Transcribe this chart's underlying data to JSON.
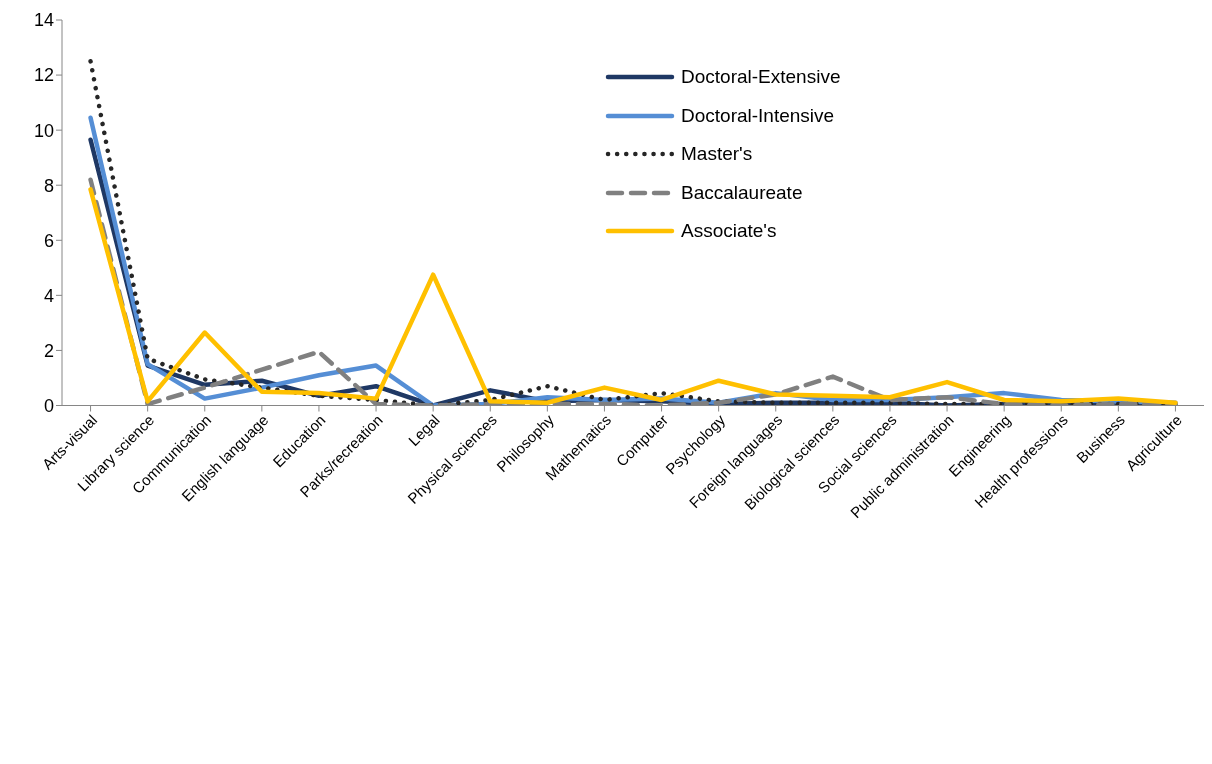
{
  "chart_data": {
    "type": "line",
    "categories": [
      "Arts-visual",
      "Library science",
      "Communication",
      "English language",
      "Education",
      "Parks/recreation",
      "Legal",
      "Physical sciences",
      "Philosophy",
      "Mathematics",
      "Computer",
      "Psychology",
      "Foreign languages",
      "Biological sciences",
      "Social sciences",
      "Public administration",
      "Engineering",
      "Health professions",
      "Business",
      "Agriculture"
    ],
    "ylim": [
      0,
      14
    ],
    "yticks": [
      0,
      2,
      4,
      6,
      8,
      10,
      12,
      14
    ],
    "grid": false,
    "legend": "top right",
    "series": [
      {
        "name": "Doctoral-Extensive",
        "color": "#1f3864",
        "line_style": "solid",
        "values": [
          9.65,
          1.45,
          0.75,
          0.9,
          0.35,
          0.7,
          0,
          0.55,
          0.15,
          0.2,
          0.15,
          0.05,
          0.1,
          0.1,
          0.1,
          0,
          0.05,
          0.05,
          0,
          0.05
        ]
      },
      {
        "name": "Doctoral-Intensive",
        "color": "#558ed5",
        "line_style": "solid",
        "values": [
          10.45,
          1.5,
          0.25,
          0.65,
          1.1,
          1.45,
          0,
          0.05,
          0.3,
          0.2,
          0.25,
          0.1,
          0.45,
          0.2,
          0.2,
          0.3,
          0.45,
          0.2,
          0.15,
          0.1
        ]
      },
      {
        "name": "Master's",
        "color": "#262626",
        "line_style": "dotted",
        "values": [
          12.5,
          1.7,
          0.95,
          0.65,
          0.35,
          0.2,
          0,
          0.2,
          0.7,
          0.2,
          0.45,
          0.15,
          0.1,
          0.1,
          0.1,
          0.05,
          0.05,
          0.05,
          0.05,
          0.05
        ]
      },
      {
        "name": "Baccalaureate",
        "color": "#808080",
        "line_style": "dashed",
        "values": [
          8.2,
          0.05,
          0.65,
          1.3,
          1.95,
          0.05,
          0,
          0.05,
          0.05,
          0.05,
          0,
          0.1,
          0.4,
          1.05,
          0.2,
          0.3,
          0.05,
          0,
          0.05,
          0.05
        ]
      },
      {
        "name": "Associate's",
        "color": "#ffc000",
        "line_style": "solid",
        "values": [
          7.85,
          0.15,
          2.65,
          0.5,
          0.45,
          0.25,
          4.75,
          0.15,
          0.1,
          0.65,
          0.2,
          0.9,
          0.4,
          0.35,
          0.3,
          0.85,
          0.2,
          0.15,
          0.25,
          0.1
        ]
      }
    ]
  }
}
